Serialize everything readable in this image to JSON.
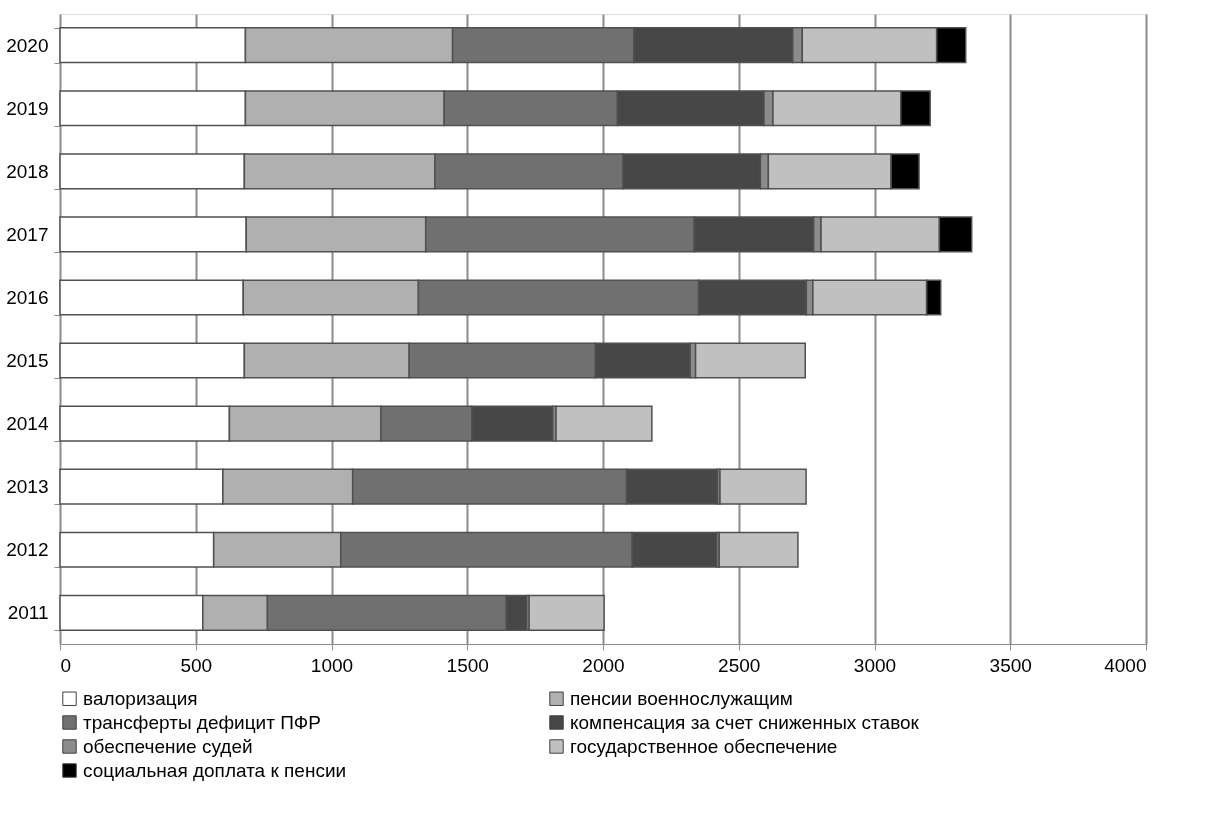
{
  "chart_data": {
    "type": "bar",
    "orientation": "horizontal",
    "stacked": true,
    "categories": [
      "2020",
      "2019",
      "2018",
      "2017",
      "2016",
      "2015",
      "2014",
      "2013",
      "2012",
      "2011"
    ],
    "series": [
      {
        "name": "валоризация",
        "color": "#ffffff",
        "values": [
          683,
          683,
          679,
          686,
          675,
          679,
          624,
          600,
          566,
          526
        ]
      },
      {
        "name": "пенсии военнослужащим",
        "color": "#b0b0b0",
        "values": [
          763,
          732,
          702,
          661,
          645,
          607,
          558,
          478,
          468,
          238
        ]
      },
      {
        "name": "трансферты дефицит ПФР",
        "color": "#707070",
        "values": [
          668,
          638,
          693,
          989,
          1032,
          686,
          335,
          1009,
          1074,
          880
        ]
      },
      {
        "name": "компенсация за счет сниженных ставок",
        "color": "#474747",
        "values": [
          585,
          540,
          506,
          440,
          397,
          349,
          298,
          335,
          311,
          75
        ]
      },
      {
        "name": "обеспечение судей",
        "color": "#8c8c8c",
        "values": [
          35,
          33,
          29,
          27,
          24,
          20,
          12,
          9,
          9,
          9
        ]
      },
      {
        "name": "государственное обеспечение",
        "color": "#c0c0c0",
        "values": [
          495,
          471,
          452,
          436,
          419,
          404,
          353,
          317,
          290,
          276
        ]
      },
      {
        "name": "социальная доплата к пенсии",
        "color": "#000000",
        "values": [
          107,
          108,
          103,
          119,
          52,
          null,
          null,
          null,
          null,
          null
        ]
      }
    ],
    "xlim": [
      0,
      4000
    ],
    "xticks": [
      0,
      500,
      1000,
      1500,
      2000,
      2500,
      3000,
      3500,
      4000
    ],
    "grid": "x",
    "legend": "bottom"
  }
}
